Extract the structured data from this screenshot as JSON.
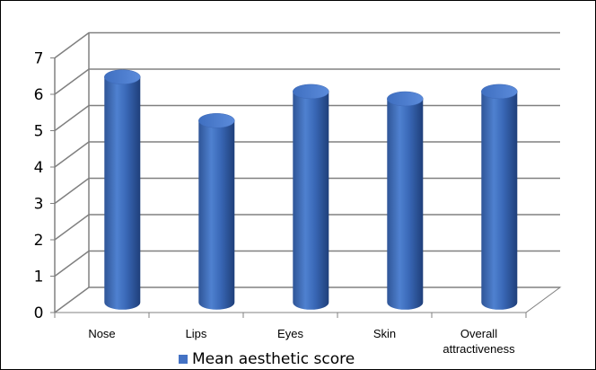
{
  "chart_data": {
    "type": "bar",
    "style": "3d-cylinder",
    "categories": [
      "Nose",
      "Lips",
      "Eyes",
      "Skin",
      "Overall attractiveness"
    ],
    "category_label_lines": [
      [
        "Nose"
      ],
      [
        "Lips"
      ],
      [
        "Eyes"
      ],
      [
        "Skin"
      ],
      [
        "Overall",
        "attractiveness"
      ]
    ],
    "series": [
      {
        "name": "Mean aesthetic score",
        "values": [
          6.2,
          5.0,
          5.8,
          5.6,
          5.8
        ],
        "color": "#4472C4"
      }
    ],
    "ylim": [
      0,
      7
    ],
    "yticks": [
      "0",
      "1",
      "2",
      "3",
      "4",
      "5",
      "6",
      "7"
    ],
    "grid": true,
    "legend_position": "bottom"
  }
}
